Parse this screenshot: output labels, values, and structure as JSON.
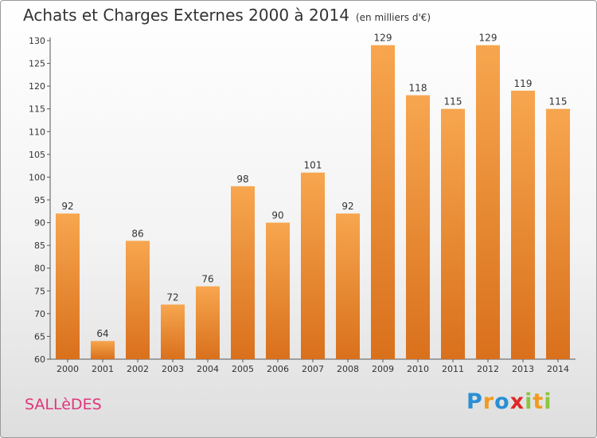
{
  "header": {
    "title": "Achats et Charges Externes 2000 à 2014",
    "subtitle": "(en milliers d'€)"
  },
  "commune": "SALLèDES",
  "logo": {
    "text": "Proxiti",
    "colors": [
      "#2a8fd4",
      "#f29a1e",
      "#2a8fd4",
      "#e02828",
      "#8bc53f",
      "#f29a1e",
      "#8bc53f"
    ]
  },
  "colors": {
    "bar_light": "#f7a64f",
    "bar_dark": "#d9701c"
  },
  "chart_data": {
    "type": "bar",
    "title": "Achats et Charges Externes 2000 à 2014",
    "subtitle": "(en milliers d'€)",
    "categories": [
      "2000",
      "2001",
      "2002",
      "2003",
      "2004",
      "2005",
      "2006",
      "2007",
      "2008",
      "2009",
      "2010",
      "2011",
      "2012",
      "2013",
      "2014"
    ],
    "values": [
      92,
      64,
      86,
      72,
      76,
      98,
      90,
      101,
      92,
      129,
      118,
      115,
      129,
      119,
      115
    ],
    "ylim": [
      60,
      130
    ],
    "yticks": [
      60,
      65,
      70,
      75,
      80,
      85,
      90,
      95,
      100,
      105,
      110,
      115,
      120,
      125,
      130
    ],
    "grid": false,
    "legend": "none"
  }
}
